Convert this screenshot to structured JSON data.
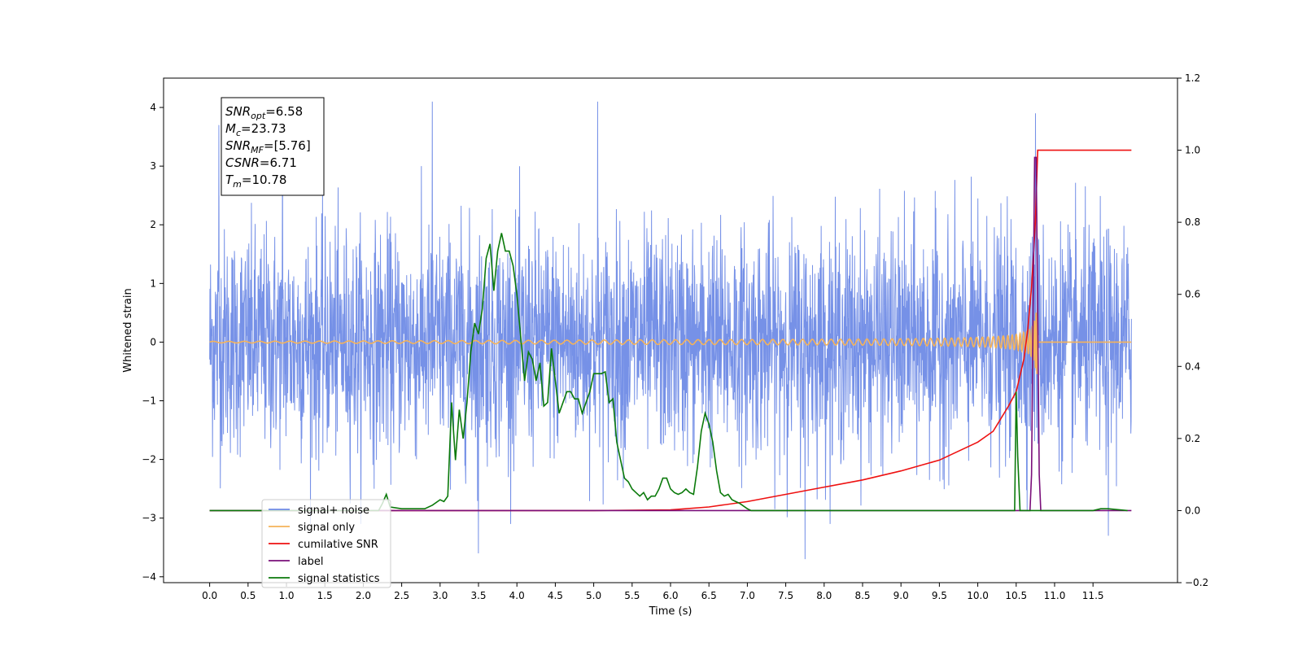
{
  "chart_data": {
    "type": "line",
    "xlabel": "Time (s)",
    "ylabel": "Whitened strain",
    "xlim": [
      -0.6,
      12.6
    ],
    "ylim": [
      -4.1,
      4.5
    ],
    "y2lim": [
      -0.2,
      1.2
    ],
    "x_ticks": [
      "0.0",
      "0.5",
      "1.0",
      "1.5",
      "2.0",
      "2.5",
      "3.0",
      "3.5",
      "4.0",
      "4.5",
      "5.0",
      "5.5",
      "6.0",
      "6.5",
      "7.0",
      "7.5",
      "8.0",
      "8.5",
      "9.0",
      "9.5",
      "10.0",
      "10.5",
      "11.0",
      "11.5"
    ],
    "y_ticks": [
      "4",
      "3",
      "2",
      "1",
      "0",
      "−1",
      "−2",
      "−3",
      "−4"
    ],
    "y_tick_values": [
      4,
      3,
      2,
      1,
      0,
      -1,
      -2,
      -3,
      -4
    ],
    "y2_ticks": [
      "1.2",
      "1.0",
      "0.8",
      "0.6",
      "0.4",
      "0.2",
      "0.0",
      "−0.2"
    ],
    "y2_tick_values": [
      1.2,
      1.0,
      0.8,
      0.6,
      0.4,
      0.2,
      0.0,
      -0.2
    ],
    "grid": false,
    "legend_position": "lower-left",
    "annotation": {
      "lines": [
        {
          "sym": "SNR",
          "sub": "opt",
          "value": "=6.58"
        },
        {
          "sym": "M",
          "sub": "c",
          "value": "=23.73"
        },
        {
          "sym": "SNR",
          "sub": "MF",
          "value": "=[5.76]"
        },
        {
          "sym": "CSNR",
          "sub": "",
          "value": "=6.71"
        },
        {
          "sym": "T",
          "sub": "m",
          "value": "=10.78"
        }
      ]
    },
    "series": [
      {
        "name": "signal+ noise",
        "color": "#6f8be6",
        "axis": "left",
        "kind": "noise",
        "x_range": [
          0.0,
          12.0
        ],
        "amplitude_std": 0.95,
        "extremes": [
          [
            0.12,
            3.7
          ],
          [
            0.95,
            3.4
          ],
          [
            2.9,
            4.1
          ],
          [
            5.05,
            4.1
          ],
          [
            10.75,
            3.9
          ],
          [
            3.5,
            -3.6
          ],
          [
            7.75,
            -3.7
          ],
          [
            11.7,
            -3.3
          ]
        ]
      },
      {
        "name": "signal only",
        "color": "#f5b35a",
        "axis": "left",
        "kind": "chirp",
        "x_range": [
          0.0,
          12.0
        ],
        "merger_time": 10.78,
        "peak_amplitude": 0.55
      },
      {
        "name": "cumilative SNR",
        "color": "#ee1111",
        "axis": "right",
        "x": [
          0.0,
          5.0,
          6.0,
          6.5,
          7.0,
          7.5,
          8.0,
          8.5,
          9.0,
          9.5,
          10.0,
          10.2,
          10.4,
          10.5,
          10.6,
          10.65,
          10.7,
          10.75,
          10.78,
          12.0
        ],
        "y": [
          0.0,
          0.0,
          0.002,
          0.01,
          0.025,
          0.045,
          0.065,
          0.085,
          0.11,
          0.14,
          0.19,
          0.22,
          0.29,
          0.33,
          0.42,
          0.5,
          0.62,
          0.8,
          1.0,
          1.0
        ]
      },
      {
        "name": "label",
        "color": "#7a0f7a",
        "axis": "right",
        "x": [
          0.0,
          10.68,
          10.7,
          10.72,
          10.74,
          10.76,
          10.78,
          10.8,
          10.82,
          12.0
        ],
        "y": [
          0.0,
          0.0,
          0.1,
          0.55,
          0.98,
          0.98,
          0.55,
          0.1,
          0.0,
          0.0
        ]
      },
      {
        "name": "signal statistics",
        "color": "#0b7a0b",
        "axis": "right",
        "x": [
          0.0,
          2.2,
          2.25,
          2.3,
          2.35,
          2.5,
          2.8,
          2.9,
          3.0,
          3.05,
          3.1,
          3.15,
          3.2,
          3.25,
          3.3,
          3.35,
          3.4,
          3.45,
          3.5,
          3.55,
          3.6,
          3.65,
          3.7,
          3.75,
          3.8,
          3.85,
          3.9,
          3.95,
          4.0,
          4.1,
          4.15,
          4.2,
          4.25,
          4.3,
          4.35,
          4.4,
          4.45,
          4.5,
          4.55,
          4.6,
          4.65,
          4.7,
          4.75,
          4.8,
          4.85,
          4.9,
          4.95,
          5.0,
          5.05,
          5.1,
          5.15,
          5.2,
          5.25,
          5.3,
          5.4,
          5.45,
          5.5,
          5.55,
          5.6,
          5.65,
          5.7,
          5.75,
          5.8,
          5.85,
          5.9,
          5.95,
          6.0,
          6.05,
          6.1,
          6.15,
          6.2,
          6.25,
          6.3,
          6.35,
          6.4,
          6.45,
          6.5,
          6.55,
          6.6,
          6.65,
          6.7,
          6.75,
          6.8,
          6.85,
          6.9,
          7.0,
          7.05,
          7.1,
          7.15,
          7.2,
          7.25,
          7.3,
          7.35,
          7.4,
          7.45,
          7.5,
          7.55,
          7.6,
          7.7,
          8.0,
          10.4,
          10.45,
          10.48,
          10.5,
          10.52,
          10.55,
          10.6,
          10.7,
          11.5,
          11.6,
          11.7,
          11.95
        ],
        "y": [
          0.0,
          0.0,
          0.02,
          0.045,
          0.01,
          0.005,
          0.005,
          0.015,
          0.03,
          0.025,
          0.04,
          0.3,
          0.14,
          0.28,
          0.2,
          0.3,
          0.44,
          0.52,
          0.49,
          0.56,
          0.7,
          0.74,
          0.61,
          0.72,
          0.77,
          0.72,
          0.72,
          0.68,
          0.6,
          0.36,
          0.44,
          0.42,
          0.36,
          0.41,
          0.29,
          0.3,
          0.45,
          0.36,
          0.27,
          0.3,
          0.33,
          0.33,
          0.31,
          0.31,
          0.27,
          0.3,
          0.33,
          0.38,
          0.38,
          0.38,
          0.385,
          0.3,
          0.31,
          0.19,
          0.09,
          0.08,
          0.06,
          0.05,
          0.04,
          0.05,
          0.03,
          0.04,
          0.04,
          0.06,
          0.09,
          0.09,
          0.06,
          0.05,
          0.045,
          0.05,
          0.06,
          0.05,
          0.045,
          0.12,
          0.22,
          0.27,
          0.24,
          0.19,
          0.11,
          0.05,
          0.04,
          0.045,
          0.03,
          0.025,
          0.02,
          0.005,
          0.0,
          0.0,
          0.0,
          0.0,
          0.0,
          0.0,
          0.0,
          0.0,
          0.0,
          0.0,
          0.0,
          0.0,
          0.0,
          0.0,
          0.0,
          0.0,
          0.0,
          0.33,
          0.15,
          0.0,
          0.0,
          0.0,
          0.0,
          0.005,
          0.005,
          0.0
        ]
      }
    ]
  }
}
